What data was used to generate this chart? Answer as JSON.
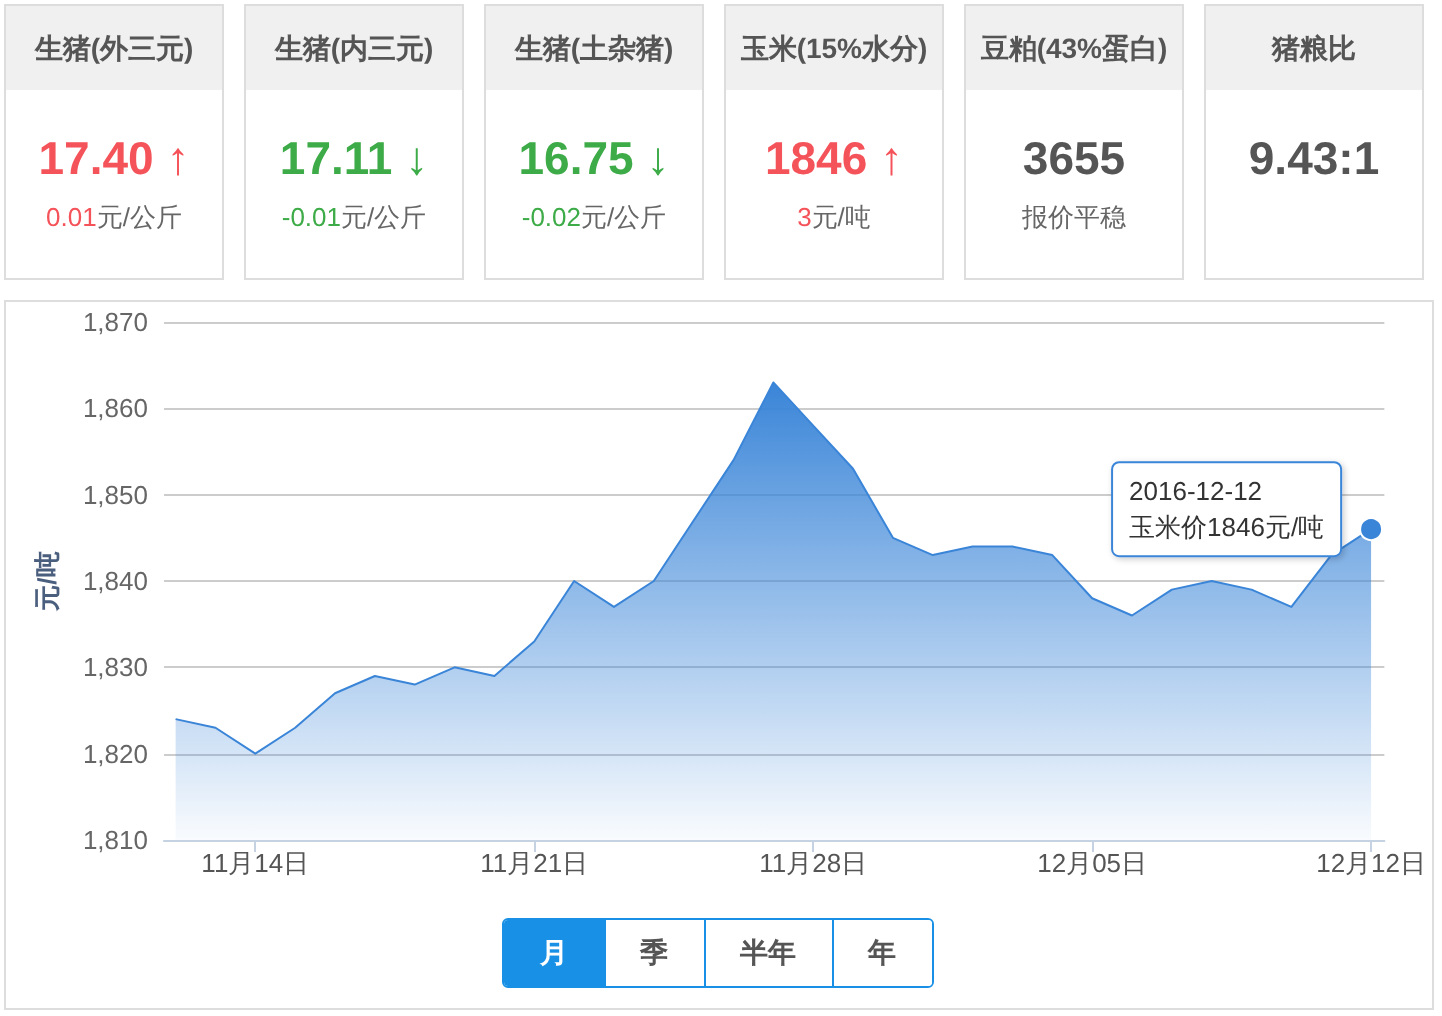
{
  "chart_data": [
    {
      "type": "other",
      "title": "生猪(外三元)",
      "values": [
        17.4
      ],
      "value_labels": [
        "17.40 ↑"
      ],
      "annotations": [
        "0.01元/公斤"
      ]
    },
    {
      "type": "other",
      "title": "生猪(内三元)",
      "values": [
        17.11
      ],
      "value_labels": [
        "17.11 ↓"
      ],
      "annotations": [
        "-0.01元/公斤"
      ]
    },
    {
      "type": "other",
      "title": "生猪(土杂猪)",
      "values": [
        16.75
      ],
      "value_labels": [
        "16.75 ↓"
      ],
      "annotations": [
        "-0.02元/公斤"
      ]
    },
    {
      "type": "other",
      "title": "玉米(15%水分)",
      "values": [
        1846
      ],
      "value_labels": [
        "1846 ↑"
      ],
      "annotations": [
        "3元/吨"
      ]
    },
    {
      "type": "other",
      "title": "豆粕(43%蛋白)",
      "values": [
        3655
      ],
      "value_labels": [
        "3655"
      ],
      "annotations": [
        "报价平稳"
      ]
    },
    {
      "type": "other",
      "title": "猪粮比",
      "values": [
        9.43
      ],
      "value_labels": [
        "9.43:1"
      ]
    },
    {
      "type": "area",
      "x": [
        "2016-11-12",
        "2016-11-13",
        "2016-11-14",
        "2016-11-15",
        "2016-11-16",
        "2016-11-17",
        "2016-11-18",
        "2016-11-19",
        "2016-11-20",
        "2016-11-21",
        "2016-11-22",
        "2016-11-23",
        "2016-11-24",
        "2016-11-25",
        "2016-11-26",
        "2016-11-27",
        "2016-11-28",
        "2016-11-29",
        "2016-11-30",
        "2016-12-01",
        "2016-12-02",
        "2016-12-03",
        "2016-12-04",
        "2016-12-05",
        "2016-12-06",
        "2016-12-07",
        "2016-12-08",
        "2016-12-09",
        "2016-12-10",
        "2016-12-11",
        "2016-12-12"
      ],
      "values": [
        1824,
        1823,
        1820,
        1823,
        1827,
        1829,
        1828,
        1830,
        1829,
        1833,
        1840,
        1837,
        1840,
        1847,
        1854,
        1863,
        1858,
        1853,
        1845,
        1843,
        1844,
        1844,
        1843,
        1838,
        1836,
        1839,
        1840,
        1839,
        1837,
        1843,
        1846
      ],
      "color": "#3a85d8",
      "ylabel": "元/吨",
      "xlim": [
        "2016-11-11T17:00",
        "2016-12-12T08:00"
      ],
      "ylim": [
        1810,
        1870
      ],
      "xticks": [
        {
          "value": "2016-11-14",
          "label": "11月14日"
        },
        {
          "value": "2016-11-21",
          "label": "11月21日"
        },
        {
          "value": "2016-11-28",
          "label": "11月28日"
        },
        {
          "value": "2016-12-05",
          "label": "12月05日"
        },
        {
          "value": "2016-12-12",
          "label": "12月12日"
        }
      ],
      "yticks": [
        {
          "value": 1810,
          "label": "1,810"
        },
        {
          "value": 1820,
          "label": "1,820"
        },
        {
          "value": 1830,
          "label": "1,830"
        },
        {
          "value": 1840,
          "label": "1,840"
        },
        {
          "value": 1850,
          "label": "1,850"
        },
        {
          "value": 1860,
          "label": "1,860"
        },
        {
          "value": 1870,
          "label": "1,870"
        }
      ],
      "grid": "y",
      "annotations": [
        {
          "text": "2016-12-12\n玉米价1846元/吨",
          "x": "2016-12-12",
          "y": 1846
        }
      ]
    },
    {
      "type": "other",
      "categories": [
        "月",
        "季",
        "半年",
        "年"
      ],
      "colors": [
        "#1890e6",
        "#ffffff",
        "#ffffff",
        "#ffffff"
      ]
    }
  ]
}
